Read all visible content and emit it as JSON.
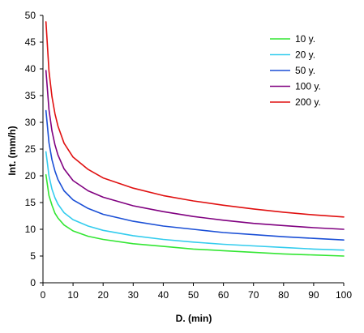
{
  "chart_data": {
    "type": "line",
    "title": "",
    "xlabel": "D. (min)",
    "ylabel": "Int. (mm/h)",
    "xlim": [
      0,
      100
    ],
    "ylim": [
      0,
      50
    ],
    "xticks": [
      0,
      10,
      20,
      30,
      40,
      50,
      60,
      70,
      80,
      90,
      100
    ],
    "yticks": [
      0,
      5,
      10,
      15,
      20,
      25,
      30,
      35,
      40,
      45,
      50
    ],
    "grid": false,
    "legend_position": "top-right",
    "x": [
      1,
      2,
      3,
      4,
      5,
      7,
      10,
      15,
      20,
      30,
      40,
      50,
      60,
      70,
      80,
      90,
      100
    ],
    "series": [
      {
        "name": "10 y.",
        "color": "#33e633",
        "values": [
          20.2,
          16.3,
          14.5,
          13.0,
          12.1,
          10.8,
          9.7,
          8.7,
          8.1,
          7.3,
          6.8,
          6.3,
          6.0,
          5.7,
          5.4,
          5.2,
          5.0
        ]
      },
      {
        "name": "20 y.",
        "color": "#33ccee",
        "values": [
          24.5,
          20.0,
          17.5,
          15.9,
          14.7,
          13.1,
          11.8,
          10.6,
          9.8,
          8.8,
          8.1,
          7.6,
          7.2,
          6.9,
          6.6,
          6.3,
          6.1
        ]
      },
      {
        "name": "50 y.",
        "color": "#1a4fd6",
        "values": [
          32.2,
          26.2,
          23.0,
          20.9,
          19.3,
          17.2,
          15.5,
          13.9,
          12.8,
          11.5,
          10.6,
          10.0,
          9.4,
          9.0,
          8.6,
          8.3,
          8.0
        ]
      },
      {
        "name": "100 y.",
        "color": "#800080",
        "values": [
          39.7,
          32.4,
          28.4,
          25.8,
          23.9,
          21.3,
          19.1,
          17.2,
          16.0,
          14.4,
          13.3,
          12.4,
          11.7,
          11.1,
          10.7,
          10.3,
          10.0
        ]
      },
      {
        "name": "200 y.",
        "color": "#e01010",
        "values": [
          48.8,
          39.6,
          34.8,
          31.6,
          29.3,
          26.1,
          23.5,
          21.2,
          19.6,
          17.7,
          16.3,
          15.3,
          14.5,
          13.8,
          13.2,
          12.7,
          12.3
        ]
      }
    ]
  }
}
